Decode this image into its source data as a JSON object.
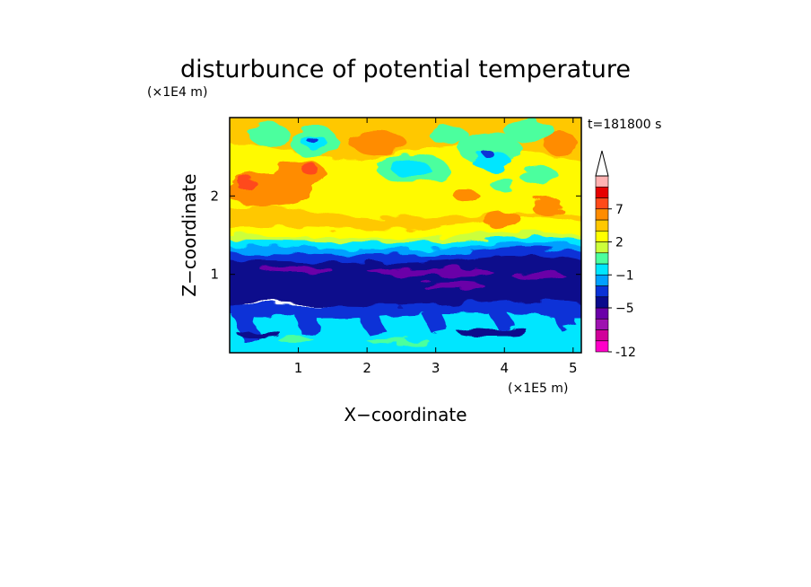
{
  "chart_data": {
    "type": "heatmap",
    "title": "disturbunce of potential temperature",
    "xlabel": "X−coordinate",
    "ylabel": "Z−coordinate",
    "x_unit": "(×1E5 m)",
    "y_unit": "(×1E4 m)",
    "time_label": "t=181800 s",
    "xlim": [
      0,
      5.12
    ],
    "ylim": [
      0,
      3.0
    ],
    "x_ticks": [
      1,
      2,
      3,
      4,
      5
    ],
    "y_ticks": [
      1,
      2
    ],
    "colorbar": {
      "levels": [
        -12,
        -11,
        -9,
        -7,
        -5,
        -3,
        -2,
        -1,
        0,
        1,
        2,
        3,
        5,
        7,
        9,
        11
      ],
      "colors": [
        "#ff00c8",
        "#d1009a",
        "#9e12b0",
        "#6a00a8",
        "#0a0a8c",
        "#0a32d7",
        "#00a0ff",
        "#00e6ff",
        "#4cff9e",
        "#ccff3a",
        "#ffff00",
        "#ffc800",
        "#ff8c00",
        "#ff4a1a",
        "#e60000",
        "#ffb2b2"
      ],
      "tick_labels": [
        "-12",
        "−5",
        "−1",
        "2",
        "7"
      ],
      "tick_levels": [
        -12,
        -5,
        -1,
        2,
        7
      ],
      "extend": "max"
    }
  }
}
